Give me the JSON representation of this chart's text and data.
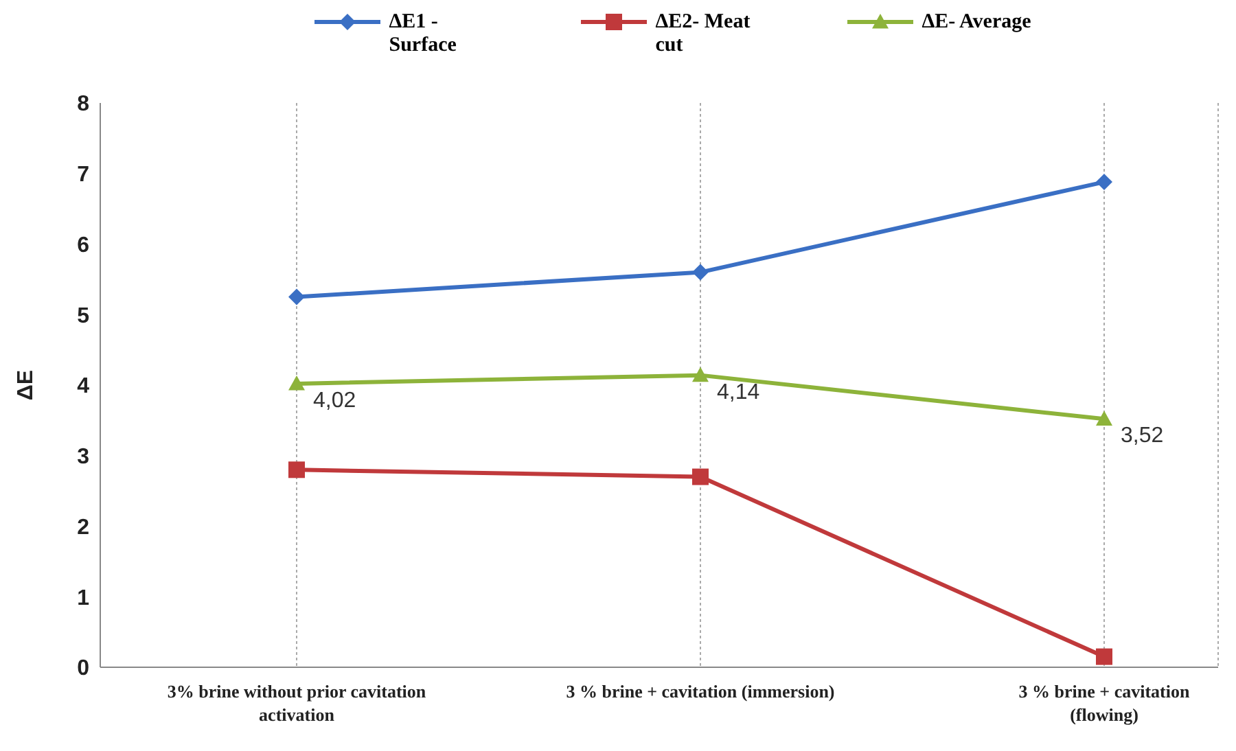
{
  "chart_data": {
    "type": "line",
    "ylabel": "ΔE",
    "categories": [
      "3% brine without prior cavitation activation",
      "3 % brine + cavitation (immersion)",
      "3 % brine + cavitation (flowing)"
    ],
    "series": [
      {
        "name": "ΔE1 - Surface",
        "color": "#3a6fc4",
        "marker": "diamond",
        "values": [
          5.25,
          5.6,
          6.88
        ]
      },
      {
        "name": "ΔE2- Meat cut",
        "color": "#c0393b",
        "marker": "square",
        "values": [
          2.8,
          2.7,
          0.15
        ]
      },
      {
        "name": "ΔE- Average",
        "color": "#8db33a",
        "marker": "triangle",
        "values": [
          4.02,
          4.14,
          3.52
        ],
        "value_labels": [
          "4,02",
          "4,14",
          "3,52"
        ]
      }
    ],
    "ylim": [
      0,
      8
    ],
    "yticks": [
      0,
      1,
      2,
      3,
      4,
      5,
      6,
      7,
      8
    ],
    "grid": "x",
    "legend": "top",
    "line_style": "solid"
  }
}
